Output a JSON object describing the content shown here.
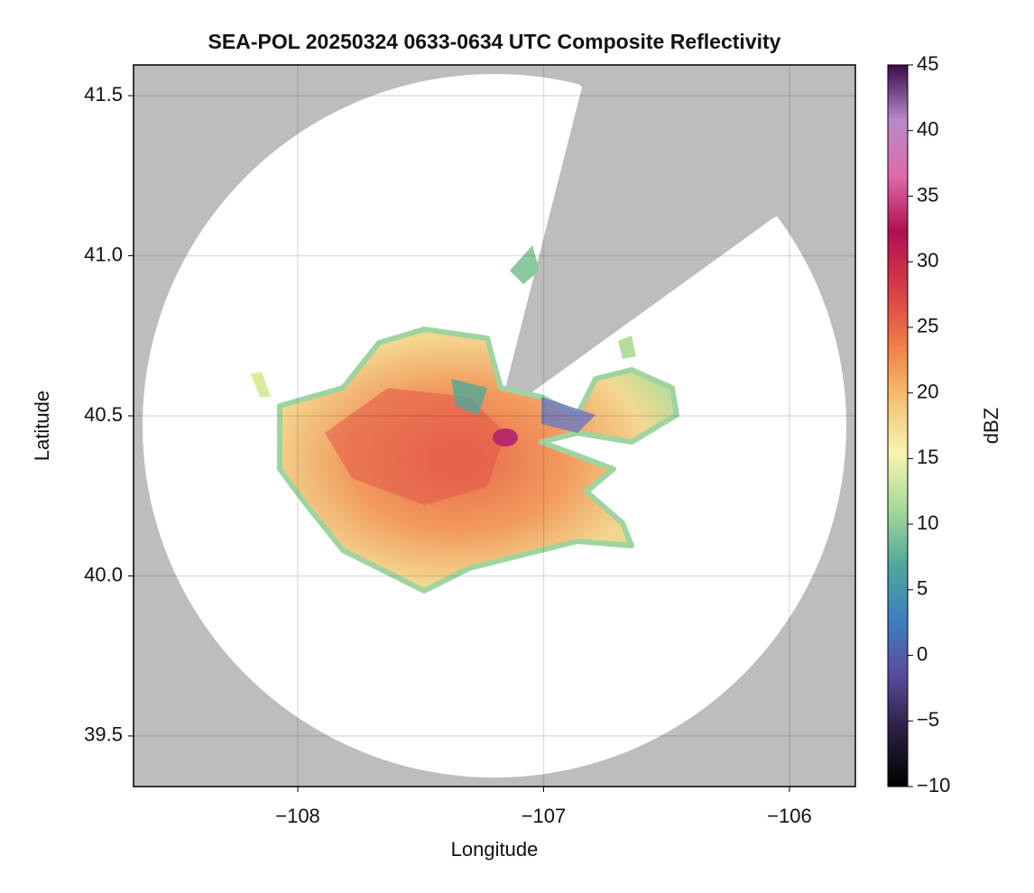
{
  "chart_data": {
    "type": "heatmap",
    "title": "SEA-POL 20250324 0633-0634 UTC Composite Reflectivity",
    "x_label": "Longitude",
    "y_label": "Latitude",
    "xlim": [
      -108.668,
      -105.732
    ],
    "xticks": [
      {
        "value": -108,
        "label": "−108"
      },
      {
        "value": -107,
        "label": "−107"
      },
      {
        "value": -106,
        "label": "−106"
      }
    ],
    "ylim": [
      39.342,
      41.596
    ],
    "yticks": [
      {
        "value": 39.5,
        "label": "39.5"
      },
      {
        "value": 40.0,
        "label": "40.0"
      },
      {
        "value": 40.5,
        "label": "40.5"
      },
      {
        "value": 41.0,
        "label": "41.0"
      },
      {
        "value": 41.5,
        "label": "41.5"
      }
    ],
    "grid": true,
    "colorbar": {
      "label": "dBZ",
      "lim": [
        -10,
        45
      ],
      "ticks": [
        {
          "value": -10,
          "label": "−10"
        },
        {
          "value": -5,
          "label": "−5"
        },
        0,
        5,
        10,
        15,
        20,
        25,
        30,
        35,
        40,
        45
      ],
      "colors": [
        "#000000",
        "#2a1f3d",
        "#5b4a9c",
        "#3d7fc0",
        "#4fa89a",
        "#a8d89a",
        "#f5f5b0",
        "#f5c070",
        "#ef7a45",
        "#d63a4a",
        "#b01050",
        "#e06aa8",
        "#b88ac8",
        "#3a0a4a"
      ]
    }
  }
}
